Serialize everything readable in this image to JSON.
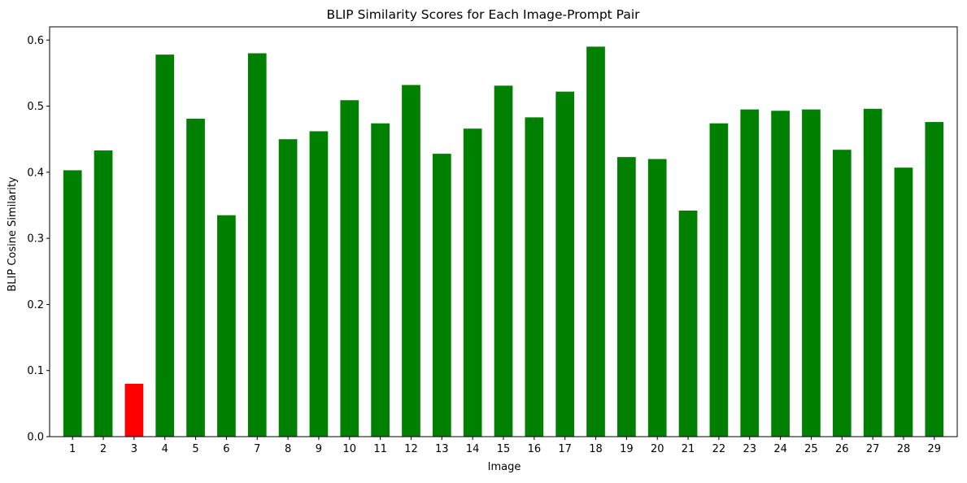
{
  "chart_data": {
    "type": "bar",
    "title": "BLIP Similarity Scores for Each Image-Prompt Pair",
    "xlabel": "Image",
    "ylabel": "BLIP Cosine Similarity",
    "categories": [
      "1",
      "2",
      "3",
      "4",
      "5",
      "6",
      "7",
      "8",
      "9",
      "10",
      "11",
      "12",
      "13",
      "14",
      "15",
      "16",
      "17",
      "18",
      "19",
      "20",
      "21",
      "22",
      "23",
      "24",
      "25",
      "26",
      "27",
      "28",
      "29"
    ],
    "values": [
      0.403,
      0.433,
      0.08,
      0.578,
      0.481,
      0.335,
      0.58,
      0.45,
      0.462,
      0.509,
      0.474,
      0.532,
      0.428,
      0.466,
      0.531,
      0.483,
      0.522,
      0.59,
      0.423,
      0.42,
      0.342,
      0.474,
      0.495,
      0.493,
      0.495,
      0.434,
      0.496,
      0.407,
      0.476
    ],
    "ylim": [
      0,
      0.62
    ],
    "yticks": [
      0.0,
      0.1,
      0.2,
      0.3,
      0.4,
      0.5,
      0.6
    ],
    "ytick_labels": [
      "0.0",
      "0.1",
      "0.2",
      "0.3",
      "0.4",
      "0.5",
      "0.6"
    ],
    "grid": false,
    "legend": "none",
    "colors": {
      "default_bar": "#008000",
      "highlight_bar": "#ff0000",
      "highlight_index": 2
    }
  }
}
